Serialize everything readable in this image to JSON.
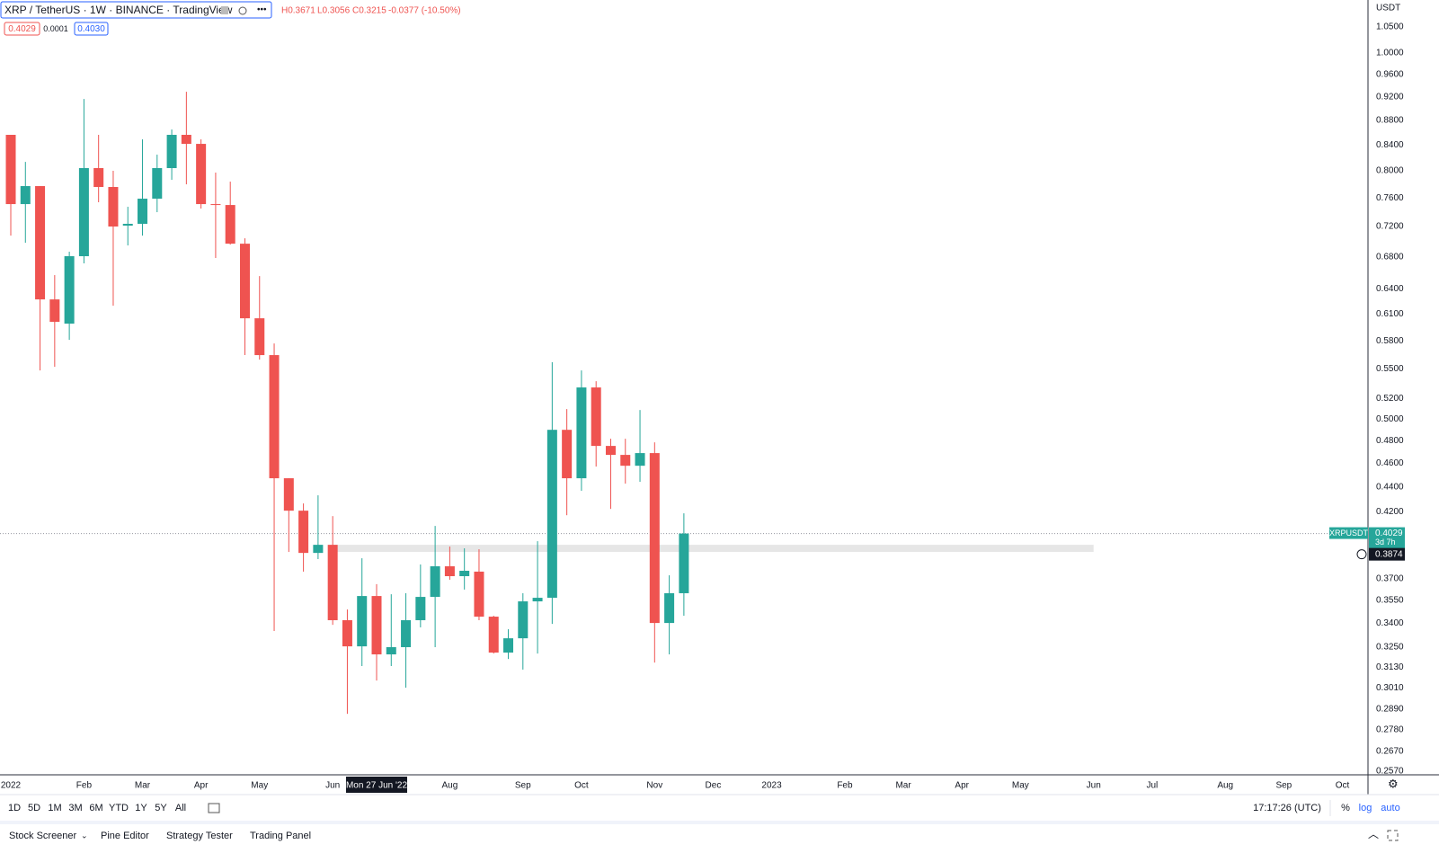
{
  "header": {
    "legend": "XRP / TetherUS · 1W · BINANCE · TradingView",
    "high": "H0.3671",
    "low": "L0.3056",
    "close": "C0.3215",
    "change": "-0.0377 (-10.50%)",
    "bid": "0.4029",
    "spread": "0.0001",
    "ask": "0.4030"
  },
  "chart_data": {
    "type": "candlestick",
    "log_scale": true,
    "grid": false,
    "up_color": "#26a69a",
    "down_color": "#ef5350",
    "categories": [
      "2022",
      null,
      null,
      null,
      null,
      "Feb",
      null,
      null,
      null,
      "Mar",
      null,
      null,
      null,
      "Apr",
      null,
      null,
      null,
      "May",
      null,
      null,
      null,
      null,
      "Jun",
      null,
      null,
      null,
      null,
      null,
      null,
      null,
      "Aug",
      null,
      null,
      null,
      null,
      "Sep",
      null,
      null,
      null,
      "Oct",
      null,
      null,
      null,
      null,
      "Nov",
      null,
      null,
      null,
      "Dec",
      null,
      null,
      null,
      "2023",
      null,
      null,
      null,
      null,
      "Feb",
      null,
      null,
      null,
      "Mar",
      null,
      null,
      null,
      "Apr",
      null,
      null,
      null,
      "May",
      null,
      null,
      null,
      null,
      "Jun",
      null,
      null,
      null,
      "Jul",
      null,
      null,
      null,
      null,
      "Aug",
      null,
      null,
      null,
      "Sep",
      null,
      null,
      null,
      "Oct"
    ],
    "open": [
      0.8563,
      0.7512,
      0.7772,
      0.6273,
      0.5992,
      0.6807,
      0.8041,
      0.7759,
      0.7212,
      0.7237,
      0.7589,
      0.8041,
      0.8563,
      0.8418,
      0.7512,
      0.7499,
      0.697,
      0.6053,
      0.5646,
      0.4473,
      0.4207,
      0.3884,
      0.3944,
      0.342,
      0.3255,
      0.358,
      0.3206,
      0.325,
      0.342,
      0.3574,
      0.3787,
      0.3717,
      0.3749,
      0.3443,
      0.3217,
      0.3305,
      0.3544,
      0.3568,
      0.4902,
      0.4473,
      0.5311,
      0.4755,
      0.4675,
      0.458,
      0.4691,
      0.3402,
      0.3599,
      null,
      null,
      null,
      null,
      null,
      null,
      null,
      null,
      null,
      null,
      null,
      null,
      null,
      null,
      null,
      null,
      null,
      null,
      null,
      null,
      null,
      null,
      null,
      null,
      null,
      null,
      null,
      null,
      null,
      null,
      null,
      null,
      null,
      null,
      null,
      null,
      null,
      null,
      null,
      null,
      null,
      null,
      null,
      null,
      null
    ],
    "high": [
      0.8563,
      0.8136,
      0.7772,
      0.6568,
      0.6865,
      0.9164,
      0.8563,
      0.8,
      0.7474,
      0.849,
      0.8248,
      0.865,
      0.929,
      0.849,
      0.7973,
      0.7838,
      0.7041,
      0.6556,
      0.5772,
      0.4473,
      0.4265,
      0.4331,
      0.4164,
      0.349,
      0.3845,
      0.3661,
      0.3592,
      0.3599,
      0.38,
      0.4087,
      0.3931,
      0.3918,
      0.3911,
      0.3449,
      0.3362,
      0.3599,
      0.3971,
      0.557,
      0.5098,
      0.5485,
      0.5374,
      0.482,
      0.482,
      0.5089,
      0.4787,
      0.3723,
      0.4186,
      null,
      null,
      null,
      null,
      null,
      null,
      null,
      null,
      null,
      null,
      null,
      null,
      null,
      null,
      null,
      null,
      null,
      null,
      null,
      null,
      null,
      null,
      null,
      null,
      null,
      null,
      null,
      null,
      null,
      null,
      null,
      null,
      null,
      null,
      null,
      null,
      null,
      null,
      null,
      null,
      null,
      null,
      null,
      null,
      null
    ],
    "low": [
      0.7077,
      0.6982,
      0.5485,
      0.5522,
      0.5811,
      0.6715,
      0.7538,
      0.6199,
      0.6947,
      0.7077,
      0.7398,
      0.7865,
      0.7798,
      0.7449,
      0.6784,
      0.6958,
      0.5646,
      0.5598,
      0.3351,
      0.3891,
      0.3749,
      0.3839,
      0.339,
      0.2865,
      0.3136,
      0.3051,
      0.3136,
      0.301,
      0.3374,
      0.325,
      0.3692,
      0.3624,
      0.342,
      0.3211,
      0.3178,
      0.3115,
      0.3211,
      0.3396,
      0.4171,
      0.4368,
      0.4573,
      0.4221,
      0.4428,
      0.4443,
      0.3157,
      0.3206,
      0.3449,
      null,
      null,
      null,
      null,
      null,
      null,
      null,
      null,
      null,
      null,
      null,
      null,
      null,
      null,
      null,
      null,
      null,
      null,
      null,
      null,
      null,
      null,
      null,
      null,
      null,
      null,
      null,
      null,
      null,
      null,
      null,
      null,
      null,
      null,
      null,
      null,
      null,
      null,
      null,
      null,
      null,
      null,
      null,
      null,
      null
    ],
    "close": [
      0.7512,
      0.7772,
      0.6273,
      0.6012,
      0.6807,
      0.8041,
      0.7759,
      0.72,
      0.7237,
      0.7589,
      0.8041,
      0.8563,
      0.8418,
      0.7512,
      0.7499,
      0.697,
      0.6053,
      0.5646,
      0.4473,
      0.4207,
      0.3884,
      0.3944,
      0.342,
      0.3255,
      0.358,
      0.3206,
      0.325,
      0.342,
      0.3574,
      0.3787,
      0.3717,
      0.3755,
      0.3443,
      0.3217,
      0.3305,
      0.3544,
      0.3568,
      0.4902,
      0.4473,
      0.5311,
      0.4755,
      0.4675,
      0.458,
      0.4691,
      0.3402,
      0.3599,
      0.4029,
      null,
      null,
      null,
      null,
      null,
      null,
      null,
      null,
      null,
      null,
      null,
      null,
      null,
      null,
      null,
      null,
      null,
      null,
      null,
      null,
      null,
      null,
      null,
      null,
      null,
      null,
      null,
      null,
      null,
      null,
      null,
      null,
      null,
      null,
      null,
      null,
      null,
      null,
      null,
      null,
      null,
      null,
      null,
      null,
      null
    ],
    "ylim": [
      0.2553,
      1.105
    ],
    "yticks": [
      {
        "value": 1.05,
        "label": "1.0500"
      },
      {
        "value": 1,
        "label": "1.0000"
      },
      {
        "value": 0.96,
        "label": "0.9600"
      },
      {
        "value": 0.92,
        "label": "0.9200"
      },
      {
        "value": 0.88,
        "label": "0.8800"
      },
      {
        "value": 0.84,
        "label": "0.8400"
      },
      {
        "value": 0.8,
        "label": "0.8000"
      },
      {
        "value": 0.76,
        "label": "0.7600"
      },
      {
        "value": 0.72,
        "label": "0.7200"
      },
      {
        "value": 0.68,
        "label": "0.6800"
      },
      {
        "value": 0.64,
        "label": "0.6400"
      },
      {
        "value": 0.61,
        "label": "0.6100"
      },
      {
        "value": 0.58,
        "label": "0.5800"
      },
      {
        "value": 0.55,
        "label": "0.5500"
      },
      {
        "value": 0.52,
        "label": "0.5200"
      },
      {
        "value": 0.5,
        "label": "0.5000"
      },
      {
        "value": 0.48,
        "label": "0.4800"
      },
      {
        "value": 0.46,
        "label": "0.4600"
      },
      {
        "value": 0.44,
        "label": "0.4400"
      },
      {
        "value": 0.42,
        "label": "0.4200"
      },
      {
        "value": 0.37,
        "label": "0.3700"
      },
      {
        "value": 0.355,
        "label": "0.3550"
      },
      {
        "value": 0.34,
        "label": "0.3400"
      },
      {
        "value": 0.325,
        "label": "0.3250"
      },
      {
        "value": 0.313,
        "label": "0.3130"
      },
      {
        "value": 0.301,
        "label": "0.3010"
      },
      {
        "value": 0.289,
        "label": "0.2890"
      },
      {
        "value": 0.278,
        "label": "0.2780"
      },
      {
        "value": 0.267,
        "label": "0.2670"
      },
      {
        "value": 0.257,
        "label": "0.2570"
      }
    ],
    "currency": "USDT",
    "last_price": 0.4029,
    "symbol_label": "XRPUSDT",
    "countdown": "3d 7h",
    "crosshair_price": 0.3874,
    "crosshair_date": "Mon 27 Jun '22",
    "zone": {
      "low": 0.3891,
      "high": 0.3944
    }
  },
  "toolbar": {
    "ranges": [
      "1D",
      "5D",
      "1M",
      "3M",
      "6M",
      "YTD",
      "1Y",
      "5Y",
      "All"
    ],
    "clock": "17:17:26 (UTC)",
    "percent": "%",
    "log": "log",
    "auto": "auto"
  },
  "tabs": [
    "Stock Screener",
    "Pine Editor",
    "Strategy Tester",
    "Trading Panel"
  ]
}
